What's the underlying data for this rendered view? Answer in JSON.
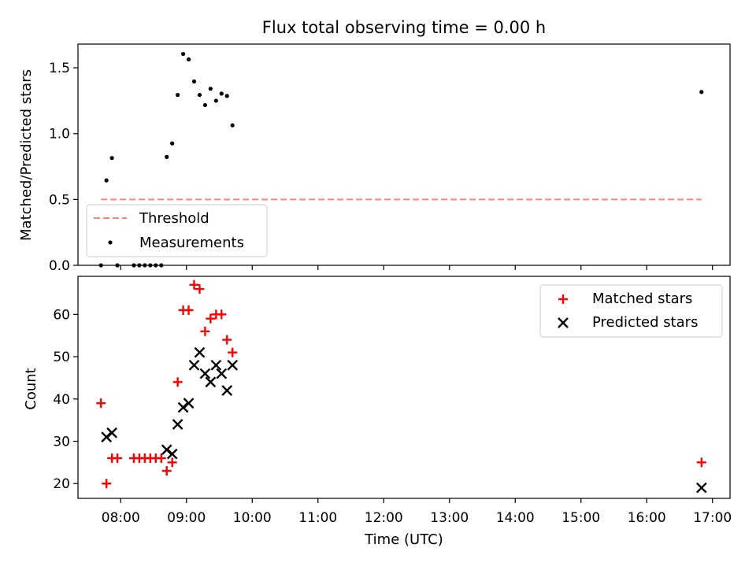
{
  "figure": {
    "title": "Flux total observing time = 0.00 h"
  },
  "chart_data": [
    {
      "type": "scatter",
      "panel": "top",
      "title": "Flux total observing time = 0.00 h",
      "xlabel": "",
      "ylabel": "Matched/Predicted stars",
      "ylim": [
        0,
        1.68
      ],
      "yticks": [
        0.0,
        0.5,
        1.0,
        1.5
      ],
      "ytick_labels": [
        "0.0",
        "0.5",
        "1.0",
        "1.5"
      ],
      "xlim": [
        "07:21",
        "17:16"
      ],
      "grid": false,
      "legend_position": "lower-left",
      "series": [
        {
          "name": "Threshold",
          "kind": "dashed-line",
          "color": "#ff7f7f",
          "points": [
            [
              "07:42",
              0.5
            ],
            [
              "16:50",
              0.5
            ]
          ]
        },
        {
          "name": "Measurements",
          "kind": "dot",
          "color": "#000000",
          "points": [
            [
              "07:42",
              0.0
            ],
            [
              "07:47",
              0.645
            ],
            [
              "07:52",
              0.815
            ],
            [
              "07:57",
              0.0
            ],
            [
              "08:12",
              0.0
            ],
            [
              "08:17",
              0.0
            ],
            [
              "08:22",
              0.0
            ],
            [
              "08:27",
              0.0
            ],
            [
              "08:32",
              0.0
            ],
            [
              "08:37",
              0.0
            ],
            [
              "08:42",
              0.823
            ],
            [
              "08:47",
              0.926
            ],
            [
              "08:52",
              1.294
            ],
            [
              "08:57",
              1.605
            ],
            [
              "09:02",
              1.564
            ],
            [
              "09:07",
              1.396
            ],
            [
              "09:12",
              1.294
            ],
            [
              "09:17",
              1.217
            ],
            [
              "09:22",
              1.341
            ],
            [
              "09:27",
              1.25
            ],
            [
              "09:32",
              1.304
            ],
            [
              "09:37",
              1.286
            ],
            [
              "09:42",
              1.063
            ],
            [
              "16:50",
              1.316
            ]
          ]
        }
      ]
    },
    {
      "type": "scatter",
      "panel": "bottom",
      "xlabel": "Time (UTC)",
      "ylabel": "Count",
      "ylim": [
        16.5,
        69
      ],
      "yticks": [
        20,
        30,
        40,
        50,
        60
      ],
      "ytick_labels": [
        "20",
        "30",
        "40",
        "50",
        "60"
      ],
      "xlim": [
        "07:21",
        "17:16"
      ],
      "xticks": [
        "08:00",
        "09:00",
        "10:00",
        "11:00",
        "12:00",
        "13:00",
        "14:00",
        "15:00",
        "16:00",
        "17:00"
      ],
      "grid": false,
      "legend_position": "upper-right",
      "series": [
        {
          "name": "Matched stars",
          "marker": "+",
          "color": "#ff0000",
          "points": [
            [
              "07:42",
              39
            ],
            [
              "07:47",
              20
            ],
            [
              "07:52",
              26
            ],
            [
              "07:57",
              26
            ],
            [
              "08:12",
              26
            ],
            [
              "08:17",
              26
            ],
            [
              "08:22",
              26
            ],
            [
              "08:27",
              26
            ],
            [
              "08:32",
              26
            ],
            [
              "08:37",
              26
            ],
            [
              "08:42",
              23
            ],
            [
              "08:47",
              25
            ],
            [
              "08:52",
              44
            ],
            [
              "08:57",
              61
            ],
            [
              "09:02",
              61
            ],
            [
              "09:07",
              67
            ],
            [
              "09:12",
              66
            ],
            [
              "09:17",
              56
            ],
            [
              "09:22",
              59
            ],
            [
              "09:27",
              60
            ],
            [
              "09:32",
              60
            ],
            [
              "09:37",
              54
            ],
            [
              "09:42",
              51
            ],
            [
              "16:50",
              25
            ]
          ]
        },
        {
          "name": "Predicted stars",
          "marker": "x",
          "color": "#000000",
          "points": [
            [
              "07:47",
              31
            ],
            [
              "07:52",
              32
            ],
            [
              "08:42",
              28
            ],
            [
              "08:47",
              27
            ],
            [
              "08:52",
              34
            ],
            [
              "08:57",
              38
            ],
            [
              "09:02",
              39
            ],
            [
              "09:07",
              48
            ],
            [
              "09:12",
              51
            ],
            [
              "09:17",
              46
            ],
            [
              "09:22",
              44
            ],
            [
              "09:27",
              48
            ],
            [
              "09:32",
              46
            ],
            [
              "09:37",
              42
            ],
            [
              "09:42",
              48
            ],
            [
              "16:50",
              19
            ]
          ]
        }
      ]
    }
  ]
}
